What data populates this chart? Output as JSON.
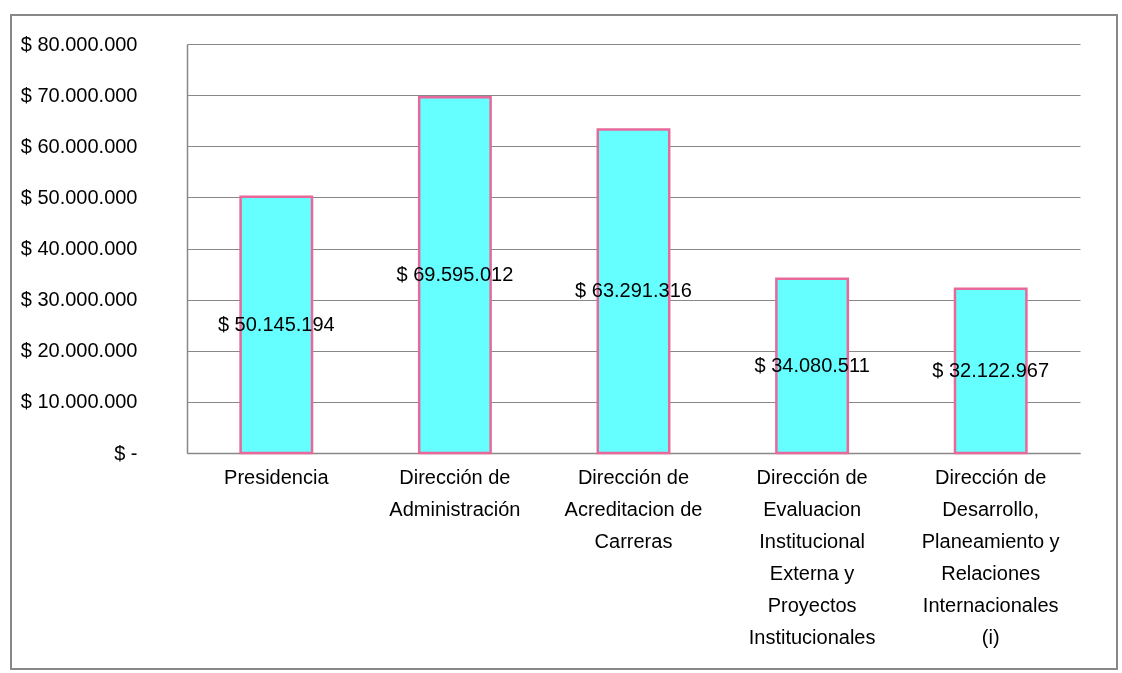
{
  "chart_data": {
    "type": "bar",
    "categories": [
      "Presidencia",
      "Dirección de Administración",
      "Dirección de Acreditacion de Carreras",
      "Dirección de Evaluacion Institucional Externa y Proyectos Institucionales",
      "Dirección de Desarrollo, Planeamiento y Relaciones Internacionales (i)"
    ],
    "values": [
      50145194,
      69595012,
      63291316,
      34080511,
      32122967
    ],
    "value_labels": [
      "$ 50.145.194",
      "$ 69.595.012",
      "$ 63.291.316",
      "$ 34.080.511",
      "$ 32.122.967"
    ],
    "color": "#66ffff",
    "ylim": [
      0,
      80000000
    ],
    "yticks": [
      {
        "value": 0,
        "label": "$ -"
      },
      {
        "value": 10000000,
        "label": "$ 10.000.000"
      },
      {
        "value": 20000000,
        "label": "$ 20.000.000"
      },
      {
        "value": 30000000,
        "label": "$ 30.000.000"
      },
      {
        "value": 40000000,
        "label": "$ 40.000.000"
      },
      {
        "value": 50000000,
        "label": "$ 50.000.000"
      },
      {
        "value": 60000000,
        "label": "$ 60.000.000"
      },
      {
        "value": 70000000,
        "label": "$ 70.000.000"
      },
      {
        "value": 80000000,
        "label": "$ 80.000.000"
      }
    ],
    "grid": "y"
  }
}
